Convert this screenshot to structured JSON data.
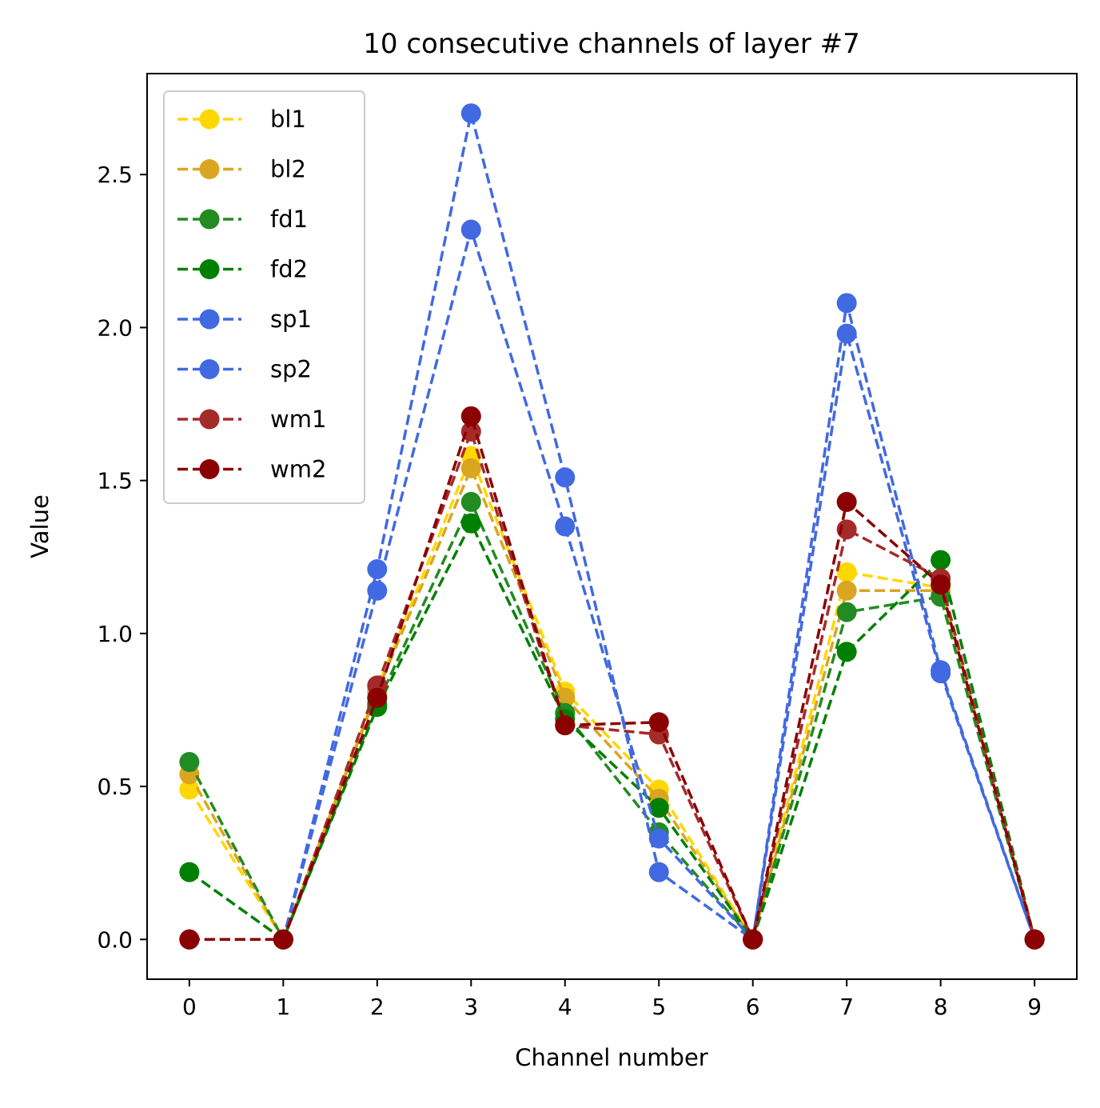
{
  "chart_data": {
    "type": "line",
    "title": "10 consecutive channels of layer #7",
    "xlabel": "Channel number",
    "ylabel": "Value",
    "x": [
      0,
      1,
      2,
      3,
      4,
      5,
      6,
      7,
      8,
      9
    ],
    "xticks": [
      "0",
      "1",
      "2",
      "3",
      "4",
      "5",
      "6",
      "7",
      "8",
      "9"
    ],
    "yticks": [
      "0.0",
      "0.5",
      "1.0",
      "1.5",
      "2.0",
      "2.5"
    ],
    "ytick_values": [
      0,
      0.5,
      1.0,
      1.5,
      2.0,
      2.5
    ],
    "xlim": [
      -0.45,
      9.45
    ],
    "ylim": [
      -0.13,
      2.83
    ],
    "grid": false,
    "legend_position": "upper-left",
    "line_style": "dashed",
    "marker": "circle",
    "series": [
      {
        "name": "bl1",
        "color": "#FFD700",
        "values": [
          0.49,
          0,
          0.82,
          1.58,
          0.81,
          0.49,
          0,
          1.2,
          1.15,
          0
        ]
      },
      {
        "name": "bl2",
        "color": "#DAA520",
        "values": [
          0.54,
          0,
          0.81,
          1.54,
          0.79,
          0.46,
          0,
          1.14,
          1.14,
          0
        ]
      },
      {
        "name": "fd1",
        "color": "#228B22",
        "values": [
          0.58,
          0,
          0.77,
          1.43,
          0.74,
          0.35,
          0,
          1.07,
          1.12,
          0
        ]
      },
      {
        "name": "fd2",
        "color": "#008000",
        "values": [
          0.22,
          0,
          0.76,
          1.36,
          0.72,
          0.43,
          0,
          0.94,
          1.24,
          0
        ]
      },
      {
        "name": "sp1",
        "color": "#4169E1",
        "values": [
          0,
          0,
          1.21,
          2.7,
          1.51,
          0.22,
          0,
          2.08,
          0.88,
          0
        ]
      },
      {
        "name": "sp2",
        "color": "#4169E1",
        "values": [
          0,
          0,
          1.14,
          2.32,
          1.35,
          0.33,
          0,
          1.98,
          0.87,
          0
        ]
      },
      {
        "name": "wm1",
        "color": "#A52A2A",
        "values": [
          0,
          0,
          0.83,
          1.66,
          0.7,
          0.67,
          0,
          1.34,
          1.18,
          0
        ]
      },
      {
        "name": "wm2",
        "color": "#8B0000",
        "values": [
          0,
          0,
          0.79,
          1.71,
          0.7,
          0.71,
          0,
          1.43,
          1.16,
          0
        ]
      }
    ]
  }
}
